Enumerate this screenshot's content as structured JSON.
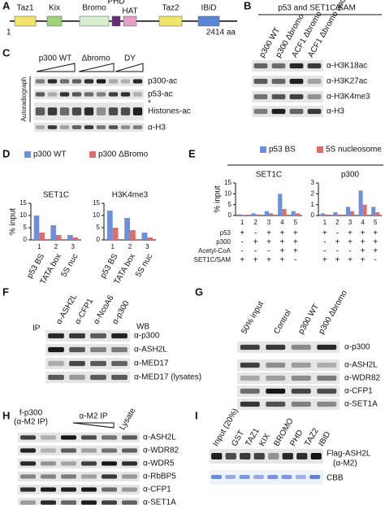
{
  "panels": {
    "A": {
      "letter": "A",
      "domains": [
        "Taz1",
        "Kix",
        "Bromo",
        "PHD",
        "HAT",
        "Taz2",
        "IBiD"
      ],
      "start": "1",
      "end": "2414 aa"
    },
    "B": {
      "letter": "B",
      "title": "p53 and SET1C/SAM",
      "lanes": [
        "p300 WT",
        "p300 Δbromo",
        "ACF1 Δbromo",
        "ACF1 Δbromo and ΔPHD"
      ],
      "rows": [
        "α-H3K18ac",
        "α-H3K27ac",
        "α-H3K4me3",
        "α-H3"
      ]
    },
    "C": {
      "letter": "C",
      "groups": [
        "p300 WT",
        "Δbromo",
        "DY"
      ],
      "side_label": "Autoradiograph",
      "rows": [
        "p300-ac",
        "p53-ac",
        "*",
        "Histones-ac",
        "α-H3"
      ]
    },
    "D": {
      "letter": "D",
      "y_label": "% input"
    },
    "E": {
      "letter": "E",
      "y_label": "% input",
      "condition_labels": [
        "p53",
        "p300",
        "Acetyl-CoA",
        "SET1C/SAM"
      ]
    },
    "F": {
      "letter": "F",
      "ip_label": "IP",
      "lanes": [
        "α-ASH2L",
        "α-CFP1",
        "α-NcoA6",
        "α-p300"
      ],
      "wb_label": "WB",
      "rows": [
        "α-p300",
        "α-ASH2L",
        "α-MED17",
        "α-MED17 (lysates)"
      ]
    },
    "G": {
      "letter": "G",
      "lanes": [
        "50% input",
        "Control",
        "p300 WT",
        "p300 Δbromo"
      ],
      "rows": [
        "α-p300",
        "α-ASH2L",
        "α-WDR82",
        "α-CFP1",
        "α-SET1A"
      ]
    },
    "H": {
      "letter": "H",
      "col1": [
        "f-p300",
        "(α-M2 IP)"
      ],
      "col2": "α-M2 IP",
      "col3": "Lysate",
      "rows": [
        "α-ASH2L",
        "α-WDR82",
        "α-WDR5",
        "α-RbBP5",
        "α-CFP1",
        "α-SET1A"
      ]
    },
    "I": {
      "letter": "I",
      "lanes": [
        "Input (20%)",
        "GST",
        "TAZ1",
        "KIX",
        "BROMO",
        "PHD",
        "TAZ2",
        "IBiD"
      ],
      "rows": [
        [
          "Flag-ASH2L",
          "(α-M2)"
        ],
        [
          "CBB"
        ]
      ]
    }
  },
  "chart_data": [
    {
      "type": "bar",
      "title": "SET1C",
      "lanes": [
        "1",
        "2",
        "3"
      ],
      "categories": [
        "p53 BS",
        "TATA box",
        "5S nuc"
      ],
      "series": [
        {
          "name": "p300 WT",
          "color": "#6f8fdc",
          "values": [
            10,
            6,
            2
          ]
        },
        {
          "name": "p300 ΔBromo",
          "color": "#d9706a",
          "values": [
            3,
            2,
            1
          ]
        }
      ],
      "ylim": [
        0,
        15
      ],
      "yticks": [
        0,
        5,
        10,
        15
      ]
    },
    {
      "type": "bar",
      "title": "H3K4me3",
      "lanes": [
        "1",
        "2",
        "3"
      ],
      "categories": [
        "p53 BS",
        "TATA box",
        "5S nuc"
      ],
      "series": [
        {
          "color": "#6f8fdc",
          "values": [
            12,
            9,
            3
          ]
        },
        {
          "color": "#d9706a",
          "values": [
            5,
            4,
            1
          ]
        }
      ],
      "ylim": [
        0,
        15
      ],
      "yticks": [
        0,
        5,
        10,
        15
      ]
    },
    {
      "type": "bar",
      "title": "SET1C",
      "lanes": [
        "1",
        "2",
        "3",
        "4",
        "5"
      ],
      "conditions": [
        [
          "+",
          "-",
          "+",
          "+",
          "+"
        ],
        [
          "-",
          "+",
          "+",
          "+",
          "+"
        ],
        [
          "-",
          "-",
          "-",
          "+",
          "+"
        ],
        [
          "+",
          "+",
          "+",
          "+",
          "-"
        ]
      ],
      "series": [
        {
          "name": "p53 BS",
          "color": "#6f8fdc",
          "values": [
            0.5,
            1,
            2,
            10,
            2
          ]
        },
        {
          "name": "5S nucleosome",
          "color": "#d9706a",
          "values": [
            0.3,
            0.5,
            1,
            3,
            1
          ]
        }
      ],
      "ylim": [
        0,
        15
      ],
      "yticks": [
        0,
        5,
        10,
        15
      ]
    },
    {
      "type": "bar",
      "title": "p300",
      "lanes": [
        "1",
        "2",
        "3",
        "4",
        "5"
      ],
      "conditions": [
        [
          "+",
          "-",
          "+",
          "+",
          "+"
        ],
        [
          "-",
          "+",
          "+",
          "+",
          "+"
        ],
        [
          "-",
          "-",
          "-",
          "+",
          "+"
        ],
        [
          "+",
          "+",
          "+",
          "+",
          "-"
        ]
      ],
      "series": [
        {
          "color": "#6f8fdc",
          "values": [
            0.2,
            0.3,
            0.8,
            2.3,
            0.8
          ]
        },
        {
          "color": "#d9706a",
          "values": [
            0.1,
            0.1,
            0.4,
            1,
            0.3
          ]
        }
      ],
      "ylim": [
        0,
        3
      ],
      "yticks": [
        0,
        1,
        2,
        3
      ]
    }
  ]
}
